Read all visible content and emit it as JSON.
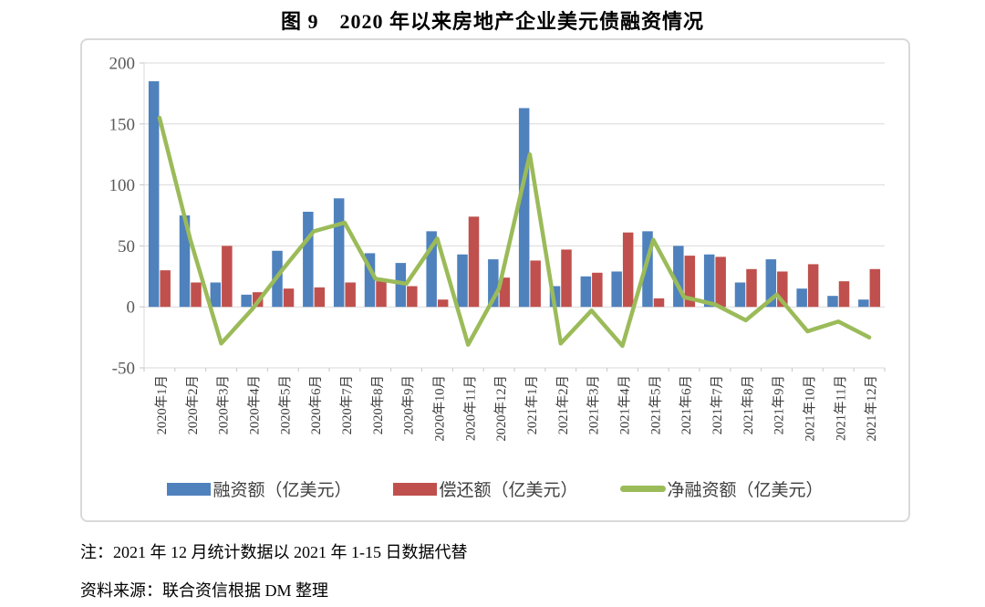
{
  "figure_title": "图 9　2020 年以来房地产企业美元债融资情况",
  "notes": {
    "note": "注：2021 年 12 月统计数据以 2021 年 1-15 日数据代替",
    "source": "资料来源：联合资信根据 DM 整理"
  },
  "chart_data": {
    "type": "bar",
    "subtype": "grouped-bars-with-line-overlay",
    "categories": [
      "2020年1月",
      "2020年2月",
      "2020年3月",
      "2020年4月",
      "2020年5月",
      "2020年6月",
      "2020年7月",
      "2020年8月",
      "2020年9月",
      "2020年10月",
      "2020年11月",
      "2020年12月",
      "2021年1月",
      "2021年2月",
      "2021年3月",
      "2021年4月",
      "2021年5月",
      "2021年6月",
      "2021年7月",
      "2021年8月",
      "2021年9月",
      "2021年10月",
      "2021年11月",
      "2021年12月"
    ],
    "series": [
      {
        "name": "融资额（亿美元）",
        "type": "bar",
        "color": "#4F81BD",
        "values": [
          185,
          75,
          20,
          10,
          46,
          78,
          89,
          44,
          36,
          62,
          43,
          39,
          163,
          17,
          25,
          29,
          62,
          50,
          43,
          20,
          39,
          15,
          9,
          6
        ]
      },
      {
        "name": "偿还额（亿美元）",
        "type": "bar",
        "color": "#C0504D",
        "values": [
          30,
          20,
          50,
          12,
          15,
          16,
          20,
          21,
          17,
          6,
          74,
          24,
          38,
          47,
          28,
          61,
          7,
          42,
          41,
          31,
          29,
          35,
          21,
          31
        ]
      },
      {
        "name": "净融资额（亿美元）",
        "type": "line",
        "color": "#9BBB59",
        "values": [
          155,
          55,
          -30,
          -2,
          31,
          62,
          69,
          23,
          19,
          56,
          -31,
          15,
          125,
          -30,
          -3,
          -32,
          55,
          8,
          2,
          -11,
          10,
          -20,
          -12,
          -25
        ]
      }
    ],
    "title": "",
    "xlabel": "",
    "ylabel": "",
    "ylim": [
      -50,
      200
    ],
    "yticks": [
      200,
      150,
      100,
      50,
      0,
      -50
    ],
    "grid": true,
    "legend_position": "bottom",
    "style": {
      "grid_color": "#D9D9D9",
      "tick_color": "#C6C6C6",
      "axis_label_color": "#595959",
      "category_label_color": "#3B3B3B"
    }
  }
}
